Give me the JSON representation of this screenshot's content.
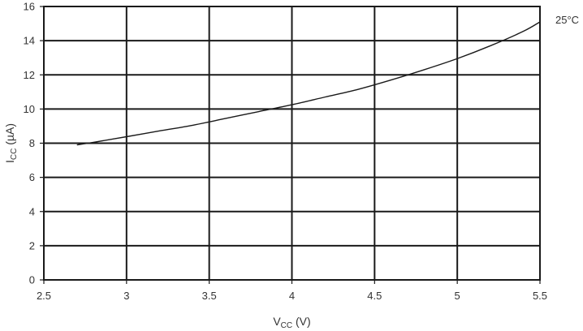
{
  "chart_data": {
    "type": "line",
    "xlabel": {
      "main": "V",
      "sub": "CC",
      "unit": " (V)"
    },
    "ylabel": {
      "main": "I",
      "sub": "CC",
      "unit": " (µA)"
    },
    "xlim": [
      2.5,
      5.5
    ],
    "ylim": [
      0,
      16
    ],
    "x_ticks": [
      2.5,
      3,
      3.5,
      4,
      4.5,
      5,
      5.5
    ],
    "x_tick_labels": [
      "2.5",
      "3",
      "3.5",
      "4",
      "4.5",
      "5",
      "5.5"
    ],
    "y_ticks": [
      0,
      2,
      4,
      6,
      8,
      10,
      12,
      14,
      16
    ],
    "y_tick_labels": [
      "0",
      "2",
      "4",
      "6",
      "8",
      "10",
      "12",
      "14",
      "16"
    ],
    "grid": true,
    "series": [
      {
        "label": "25°C",
        "color": "#1a1a1a",
        "x": [
          2.7,
          2.8,
          3.0,
          3.2,
          3.4,
          3.6,
          3.8,
          4.0,
          4.2,
          4.4,
          4.6,
          4.8,
          5.0,
          5.2,
          5.4,
          5.5
        ],
        "y": [
          7.9,
          8.05,
          8.38,
          8.72,
          9.05,
          9.45,
          9.85,
          10.25,
          10.7,
          11.15,
          11.7,
          12.3,
          12.95,
          13.7,
          14.55,
          15.1
        ]
      }
    ]
  }
}
